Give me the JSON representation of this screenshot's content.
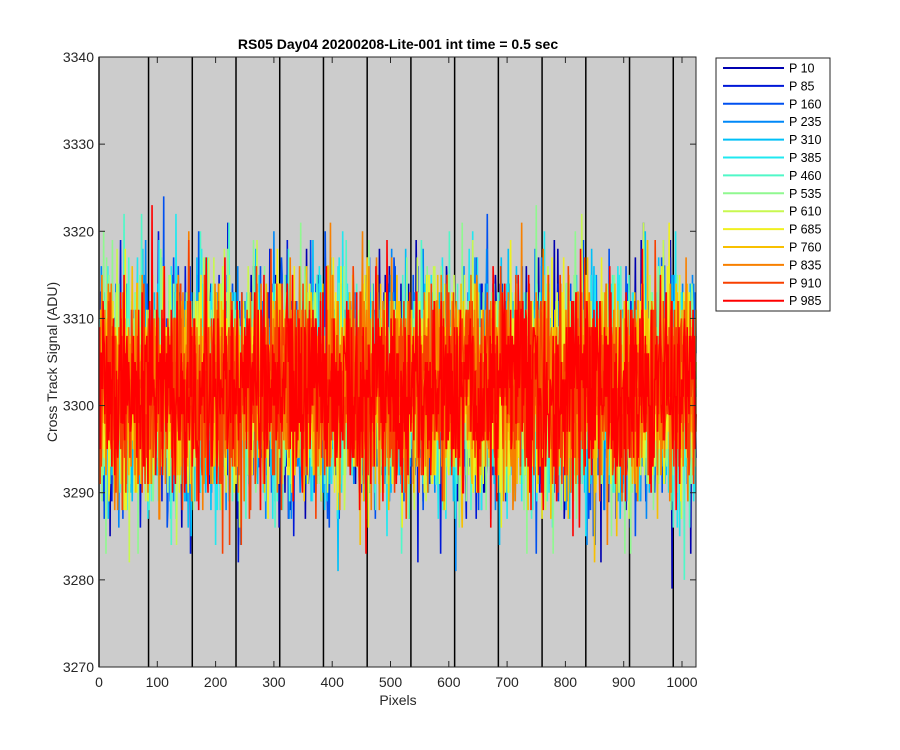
{
  "chart_data": {
    "type": "line",
    "title": "RS05 Day04 20200208-Lite-001 int time = 0.5 sec",
    "xlabel": "Pixels",
    "ylabel": "Cross Track Signal (ADU)",
    "xlim": [
      0,
      1024
    ],
    "ylim": [
      3270,
      3340
    ],
    "x_ticks": [
      0,
      100,
      200,
      300,
      400,
      500,
      600,
      700,
      800,
      900,
      1000
    ],
    "y_ticks": [
      3270,
      3280,
      3290,
      3300,
      3310,
      3320,
      3330,
      3340
    ],
    "background_color": "#cccccc",
    "grid": false,
    "vertical_lines_x": [
      0,
      85,
      160,
      235,
      310,
      385,
      460,
      535,
      610,
      685,
      760,
      835,
      910,
      985
    ],
    "vertical_line_color": "#000000",
    "legend_position": "outside-top-right",
    "x_start": 1,
    "x_end": 1024,
    "noise_description": "dense per-pixel noise around a mean of ~3302 ADU",
    "series": [
      {
        "name": "P 10",
        "color": "#0000b0",
        "mean": 3302.0,
        "sigma": 6.2
      },
      {
        "name": "P 85",
        "color": "#0018d8",
        "mean": 3302.0,
        "sigma": 6.2
      },
      {
        "name": "P 160",
        "color": "#0050f0",
        "mean": 3302.0,
        "sigma": 6.2
      },
      {
        "name": "P 235",
        "color": "#0088f8",
        "mean": 3302.0,
        "sigma": 6.0
      },
      {
        "name": "P 310",
        "color": "#00c0f8",
        "mean": 3302.0,
        "sigma": 6.0
      },
      {
        "name": "P 385",
        "color": "#20e8f0",
        "mean": 3302.0,
        "sigma": 6.0
      },
      {
        "name": "P 460",
        "color": "#50f8c8",
        "mean": 3302.0,
        "sigma": 6.2
      },
      {
        "name": "P 535",
        "color": "#90f890",
        "mean": 3302.0,
        "sigma": 6.2
      },
      {
        "name": "P 610",
        "color": "#c8f850",
        "mean": 3302.0,
        "sigma": 6.0
      },
      {
        "name": "P 685",
        "color": "#f0f020",
        "mean": 3302.0,
        "sigma": 6.0
      },
      {
        "name": "P 760",
        "color": "#f8c000",
        "mean": 3302.0,
        "sigma": 6.0
      },
      {
        "name": "P 835",
        "color": "#f88000",
        "mean": 3302.0,
        "sigma": 6.0
      },
      {
        "name": "P 910",
        "color": "#f84000",
        "mean": 3302.0,
        "sigma": 5.8
      },
      {
        "name": "P 985",
        "color": "#ff0000",
        "mean": 3302.0,
        "sigma": 5.8
      }
    ]
  }
}
